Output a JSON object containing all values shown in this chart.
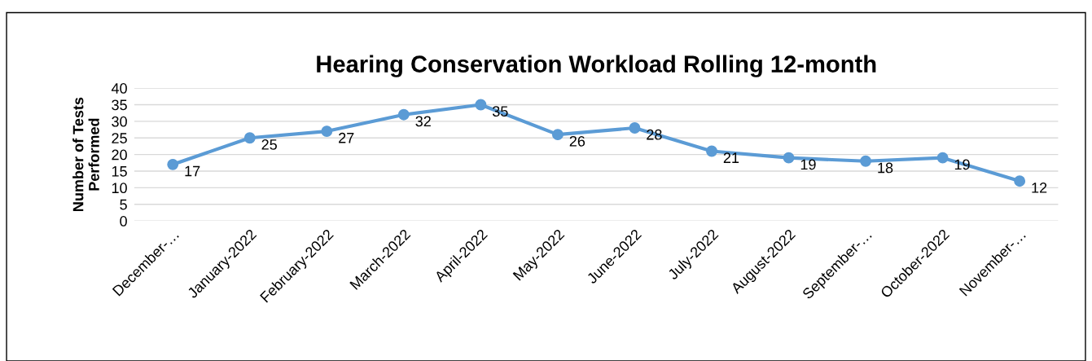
{
  "chart_data": {
    "type": "line",
    "title": "Hearing Conservation Workload Rolling 12-month",
    "ylabel": "Number of Tests\nPerformed",
    "categories": [
      "December-…",
      "January-2022",
      "February-2022",
      "March-2022",
      "April-2022",
      "May-2022",
      "June-2022",
      "July-2022",
      "August-2022",
      "September-…",
      "October-2022",
      "November-…"
    ],
    "series": [
      {
        "color": "#5b9bd5",
        "values": [
          17,
          25,
          27,
          32,
          35,
          26,
          28,
          21,
          19,
          18,
          19,
          12
        ]
      }
    ],
    "ylim": [
      0,
      40
    ],
    "yticks": [
      0,
      5,
      10,
      15,
      20,
      25,
      30,
      35,
      40
    ],
    "grid": "y",
    "marker": "circle",
    "line_style": "solid",
    "data_labels": true
  }
}
